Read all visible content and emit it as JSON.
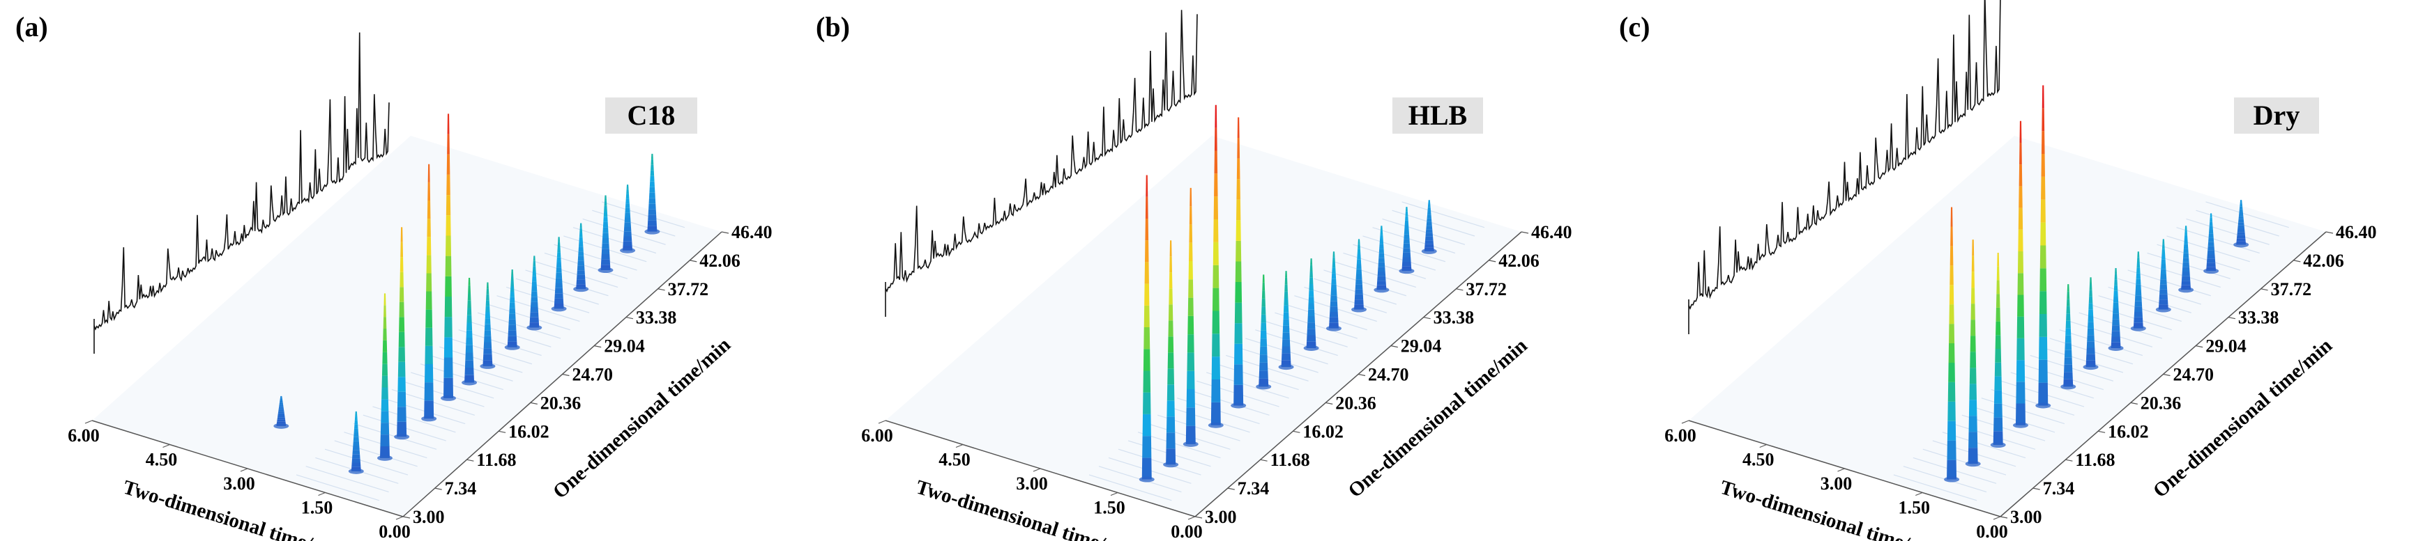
{
  "panels": [
    {
      "panel_label": "(a)",
      "sample": "C18",
      "x_ticks": [
        "6.00",
        "4.50",
        "3.00",
        "1.50",
        "0.00"
      ],
      "y_ticks": [
        "3.00",
        "7.34",
        "11.68",
        "16.02",
        "20.36",
        "24.70",
        "29.04",
        "33.38",
        "37.72",
        "42.06",
        "46.40"
      ],
      "x_label": "Two-dimensional time/s",
      "y_label": "One-dimensional time/min"
    },
    {
      "panel_label": "(b)",
      "sample": "HLB",
      "x_ticks": [
        "6.00",
        "4.50",
        "3.00",
        "1.50",
        "0.00"
      ],
      "y_ticks": [
        "3.00",
        "7.34",
        "11.68",
        "16.02",
        "20.36",
        "24.70",
        "29.04",
        "33.38",
        "37.72",
        "42.06",
        "46.40"
      ],
      "x_label": "Two-dimensional time/s",
      "y_label": "One-dimensional time/min"
    },
    {
      "panel_label": "(c)",
      "sample": "Dry",
      "x_ticks": [
        "6.00",
        "4.50",
        "3.00",
        "1.50",
        "0.00"
      ],
      "y_ticks": [
        "3.00",
        "7.34",
        "11.68",
        "16.02",
        "20.36",
        "24.70",
        "29.04",
        "33.38",
        "37.72",
        "42.06",
        "46.40"
      ],
      "x_label": "Two-dimensional time/s",
      "y_label": "One-dimensional time/min"
    }
  ],
  "chart_data": [
    {
      "type": "surface-3d",
      "sample": "C18",
      "x_axis": {
        "label": "Two-dimensional time/s",
        "range": [
          0,
          6
        ],
        "ticks": [
          6.0,
          4.5,
          3.0,
          1.5,
          0.0
        ]
      },
      "y_axis": {
        "label": "One-dimensional time/min",
        "range": [
          3,
          46.4
        ],
        "ticks": [
          3.0,
          7.34,
          11.68,
          16.02,
          20.36,
          24.7,
          29.04,
          33.38,
          37.72,
          42.06,
          46.4
        ]
      },
      "surface_peaks": [
        {
          "t1": 6.5,
          "t2": 1.4,
          "h": 0.2
        },
        {
          "t1": 9.0,
          "t2": 1.2,
          "h": 0.55
        },
        {
          "t1": 12.0,
          "t2": 1.3,
          "h": 0.7
        },
        {
          "t1": 15.0,
          "t2": 1.2,
          "h": 0.85
        },
        {
          "t1": 18.0,
          "t2": 1.25,
          "h": 0.95
        },
        {
          "t1": 20.5,
          "t2": 1.2,
          "h": 0.35
        },
        {
          "t1": 23.0,
          "t2": 1.2,
          "h": 0.28
        },
        {
          "t1": 26.0,
          "t2": 1.15,
          "h": 0.26
        },
        {
          "t1": 29.0,
          "t2": 1.15,
          "h": 0.24
        },
        {
          "t1": 32.0,
          "t2": 1.1,
          "h": 0.24
        },
        {
          "t1": 35.0,
          "t2": 1.1,
          "h": 0.22
        },
        {
          "t1": 38.0,
          "t2": 1.05,
          "h": 0.25
        },
        {
          "t1": 41.0,
          "t2": 1.05,
          "h": 0.22
        },
        {
          "t1": 44.0,
          "t2": 1.0,
          "h": 0.26
        },
        {
          "t1": 9.0,
          "t2": 3.2,
          "h": 0.1
        }
      ],
      "tic_trace": [
        0.05,
        0.2,
        0.1,
        0.45,
        0.08,
        0.35,
        0.07,
        0.15,
        0.42,
        0.06,
        0.2,
        0.55,
        0.1,
        0.18,
        0.35,
        0.09,
        0.6,
        0.15,
        0.28,
        0.4,
        0.2,
        0.55,
        0.3,
        0.45,
        0.65,
        0.35,
        0.85,
        1.0,
        0.55,
        0.45,
        0.4
      ]
    },
    {
      "type": "surface-3d",
      "sample": "HLB",
      "x_axis": {
        "label": "Two-dimensional time/s",
        "range": [
          0,
          6
        ],
        "ticks": [
          6.0,
          4.5,
          3.0,
          1.5,
          0.0
        ]
      },
      "y_axis": {
        "label": "One-dimensional time/min",
        "range": [
          3,
          46.4
        ],
        "ticks": [
          3.0,
          7.34,
          11.68,
          16.02,
          20.36,
          24.7,
          29.04,
          33.38,
          37.72,
          42.06,
          46.4
        ]
      },
      "surface_peaks": [
        {
          "t1": 5.5,
          "t2": 1.3,
          "h": 0.95
        },
        {
          "t1": 8.0,
          "t2": 1.2,
          "h": 0.7
        },
        {
          "t1": 11.0,
          "t2": 1.25,
          "h": 0.8
        },
        {
          "t1": 14.0,
          "t2": 1.2,
          "h": 1.0
        },
        {
          "t1": 17.0,
          "t2": 1.2,
          "h": 0.9
        },
        {
          "t1": 20.0,
          "t2": 1.15,
          "h": 0.35
        },
        {
          "t1": 23.0,
          "t2": 1.15,
          "h": 0.3
        },
        {
          "t1": 26.0,
          "t2": 1.1,
          "h": 0.28
        },
        {
          "t1": 29.0,
          "t2": 1.1,
          "h": 0.24
        },
        {
          "t1": 32.0,
          "t2": 1.05,
          "h": 0.22
        },
        {
          "t1": 35.0,
          "t2": 1.05,
          "h": 0.2
        },
        {
          "t1": 38.0,
          "t2": 1.0,
          "h": 0.2
        },
        {
          "t1": 41.0,
          "t2": 1.0,
          "h": 0.16
        }
      ],
      "tic_trace": [
        0.05,
        0.6,
        0.1,
        0.45,
        0.08,
        0.4,
        0.07,
        0.3,
        0.12,
        0.09,
        0.22,
        0.15,
        0.1,
        0.2,
        0.18,
        0.12,
        0.25,
        0.2,
        0.28,
        0.22,
        0.3,
        0.35,
        0.32,
        0.4,
        0.42,
        0.5,
        0.55,
        0.6,
        0.65,
        0.7,
        0.6
      ]
    },
    {
      "type": "surface-3d",
      "sample": "Dry",
      "x_axis": {
        "label": "Two-dimensional time/s",
        "range": [
          0,
          6
        ],
        "ticks": [
          6.0,
          4.5,
          3.0,
          1.5,
          0.0
        ]
      },
      "y_axis": {
        "label": "One-dimensional time/min",
        "range": [
          3,
          46.4
        ],
        "ticks": [
          3.0,
          7.34,
          11.68,
          16.02,
          20.36,
          24.7,
          29.04,
          33.38,
          37.72,
          42.06,
          46.4
        ]
      },
      "surface_peaks": [
        {
          "t1": 5.5,
          "t2": 1.3,
          "h": 0.85
        },
        {
          "t1": 8.0,
          "t2": 1.25,
          "h": 0.7
        },
        {
          "t1": 11.0,
          "t2": 1.2,
          "h": 0.6
        },
        {
          "t1": 14.0,
          "t2": 1.2,
          "h": 0.95
        },
        {
          "t1": 17.0,
          "t2": 1.2,
          "h": 1.0
        },
        {
          "t1": 20.0,
          "t2": 1.15,
          "h": 0.32
        },
        {
          "t1": 23.0,
          "t2": 1.15,
          "h": 0.28
        },
        {
          "t1": 26.0,
          "t2": 1.1,
          "h": 0.25
        },
        {
          "t1": 29.0,
          "t2": 1.1,
          "h": 0.24
        },
        {
          "t1": 32.0,
          "t2": 1.05,
          "h": 0.22
        },
        {
          "t1": 35.0,
          "t2": 1.05,
          "h": 0.2
        },
        {
          "t1": 38.0,
          "t2": 1.0,
          "h": 0.18
        },
        {
          "t1": 42.0,
          "t2": 1.0,
          "h": 0.14
        }
      ],
      "tic_trace": [
        0.05,
        0.55,
        0.1,
        0.4,
        0.08,
        0.45,
        0.07,
        0.35,
        0.12,
        0.3,
        0.1,
        0.28,
        0.15,
        0.25,
        0.2,
        0.3,
        0.22,
        0.35,
        0.3,
        0.4,
        0.28,
        0.45,
        0.4,
        0.5,
        0.55,
        0.6,
        0.65,
        0.7,
        0.75,
        0.8,
        0.7
      ]
    }
  ]
}
